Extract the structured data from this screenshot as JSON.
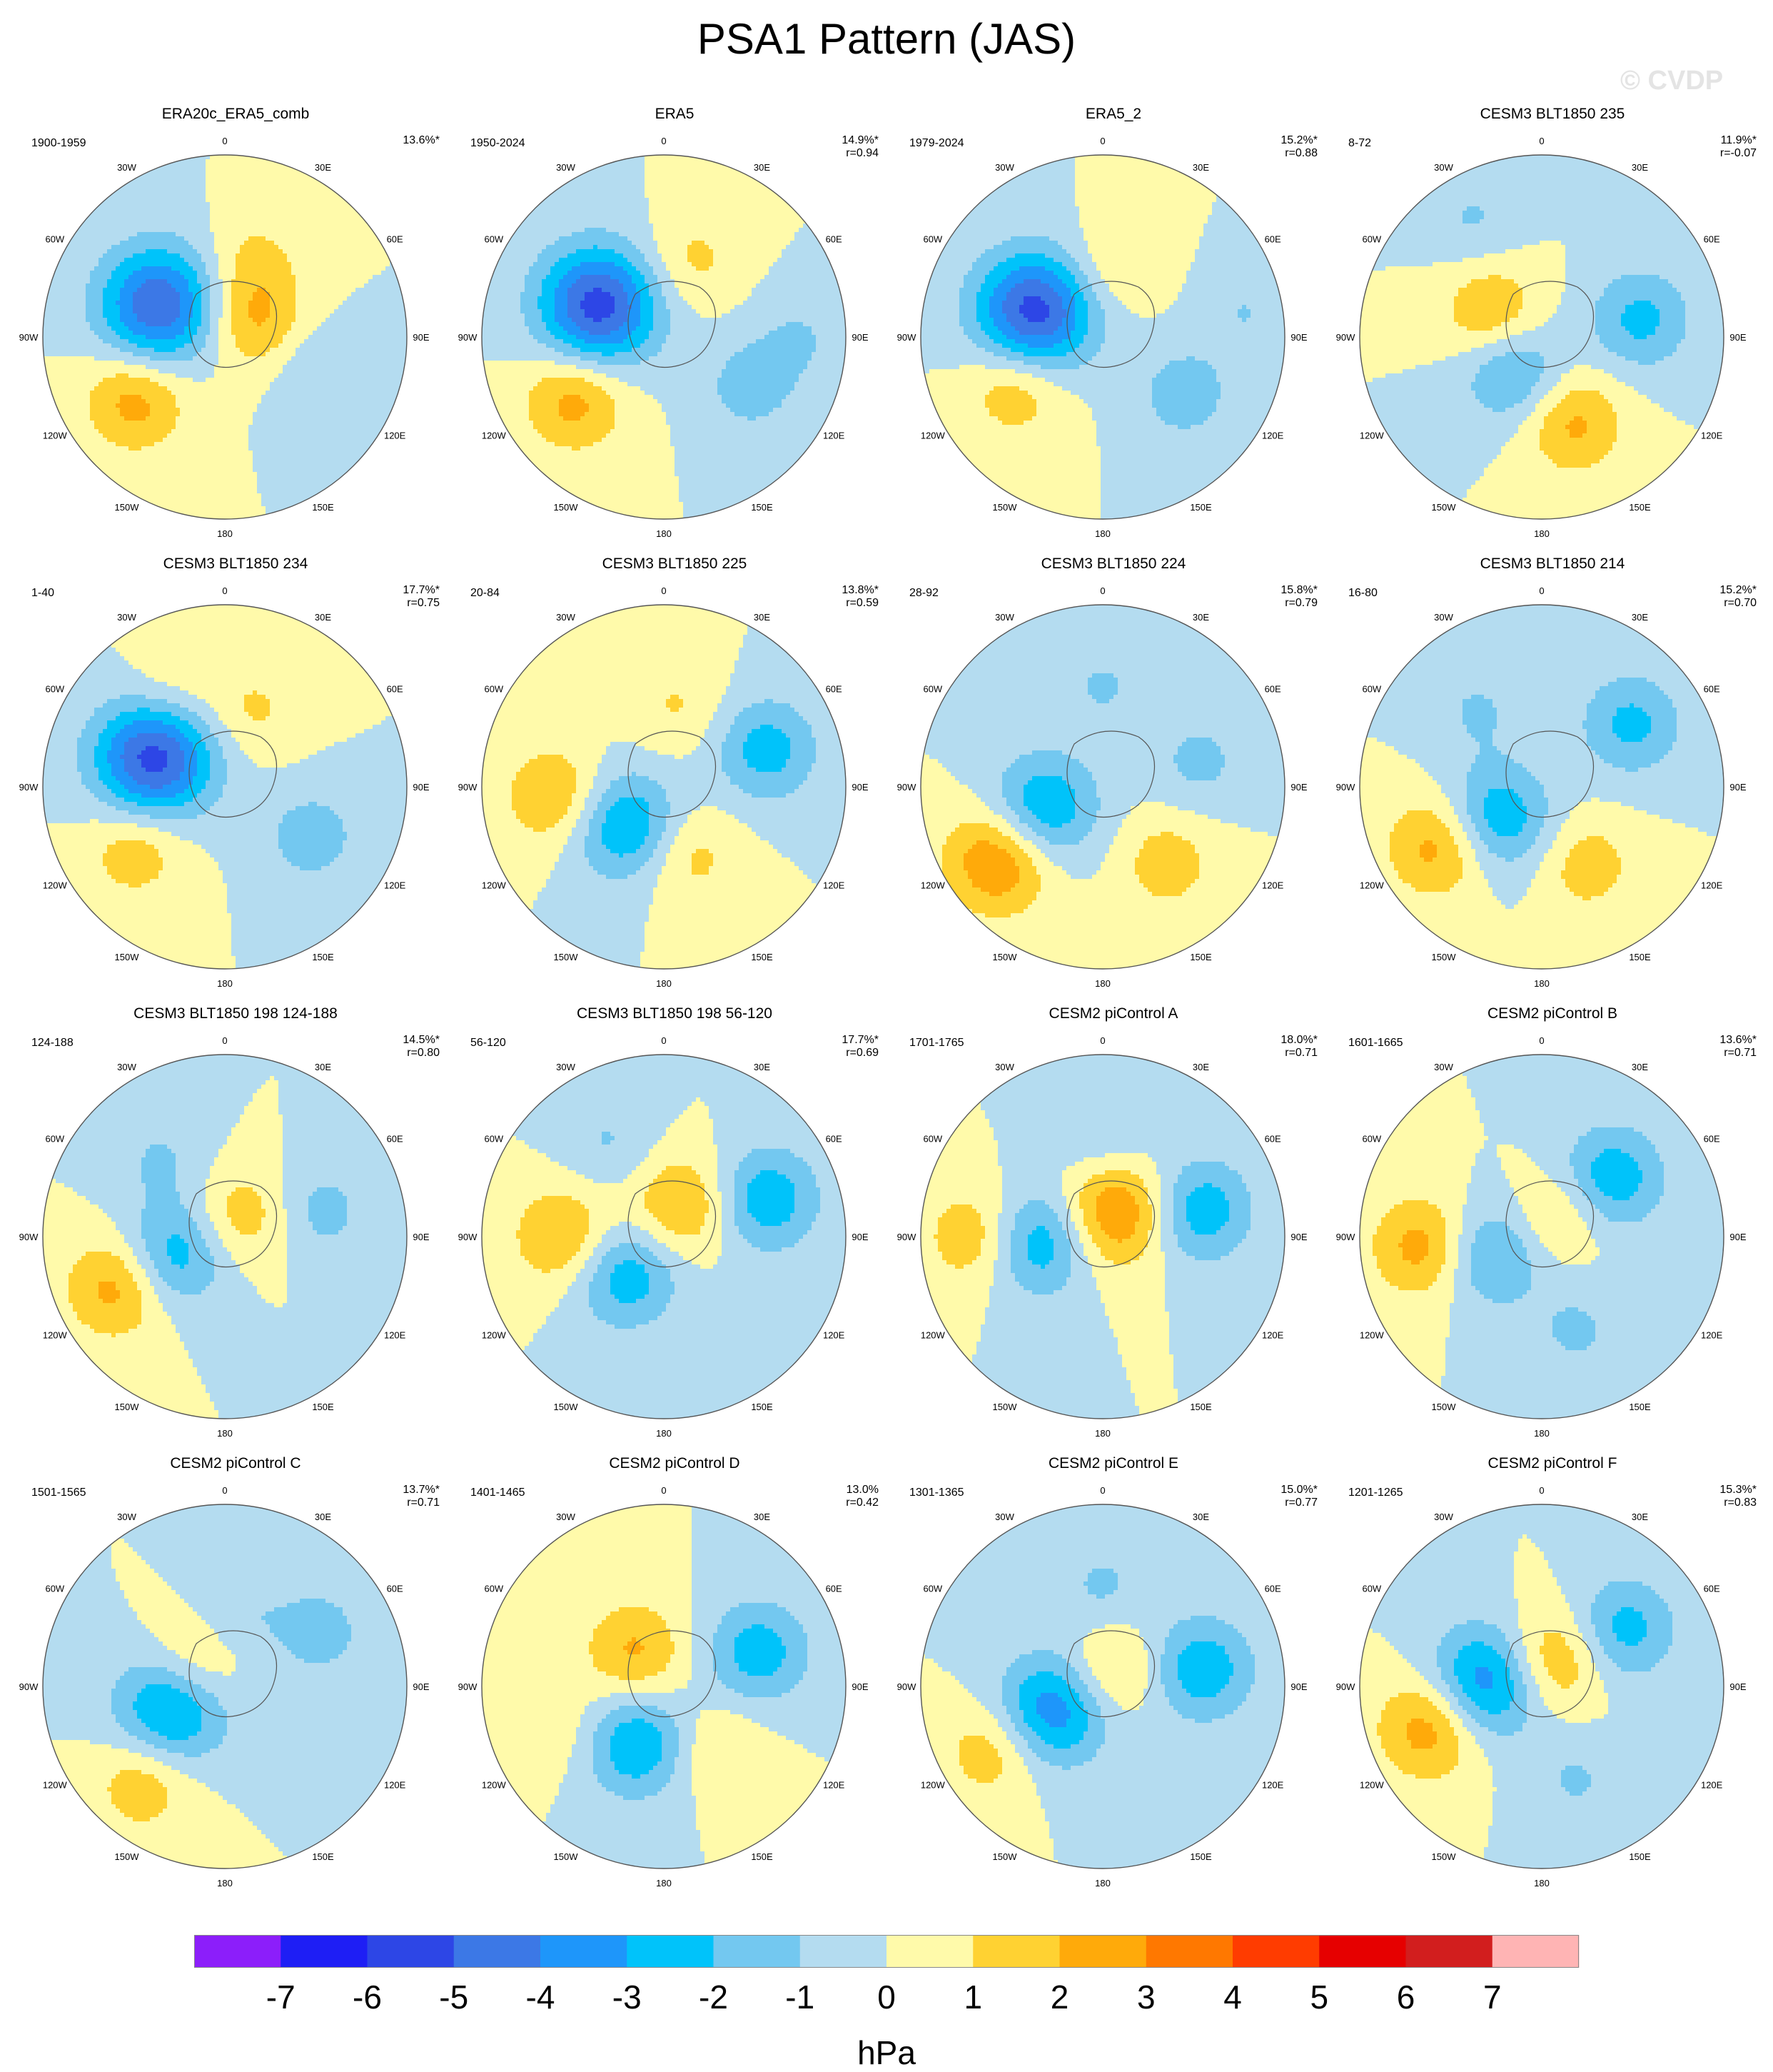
{
  "title": "PSA1 Pattern (JAS)",
  "watermark": "© CVDP",
  "lon_labels": [
    "0",
    "30E",
    "60E",
    "90E",
    "120E",
    "150E",
    "180",
    "150W",
    "120W",
    "90W",
    "60W",
    "30W"
  ],
  "panels": [
    {
      "title": "ERA20c_ERA5_comb",
      "years": "1900-1959",
      "pct": "13.6%*",
      "r": "",
      "centers": [
        [
          295,
          0.4,
          -5.0
        ],
        [
          235,
          0.6,
          2.5
        ],
        [
          60,
          0.18,
          2.2
        ],
        [
          20,
          0.45,
          1.2
        ],
        [
          110,
          0.55,
          -1.1
        ]
      ]
    },
    {
      "title": "ERA5",
      "years": "1950-2024",
      "pct": "14.9%*",
      "r": "r=0.94",
      "centers": [
        [
          295,
          0.4,
          -5.5
        ],
        [
          235,
          0.6,
          2.5
        ],
        [
          20,
          0.45,
          1.3
        ],
        [
          120,
          0.55,
          -1.5
        ],
        [
          90,
          0.75,
          -1.0
        ]
      ]
    },
    {
      "title": "ERA5_2",
      "years": "1979-2024",
      "pct": "15.2%*",
      "r": "r=0.88",
      "centers": [
        [
          290,
          0.4,
          -5.5
        ],
        [
          240,
          0.55,
          2.0
        ],
        [
          10,
          0.4,
          1.2
        ],
        [
          125,
          0.55,
          -1.6
        ],
        [
          80,
          0.8,
          -1.0
        ]
      ]
    },
    {
      "title": "CESM3 BLT1850 235",
      "years": "8-72",
      "pct": "11.9%*",
      "r": "r=-0.07",
      "centers": [
        [
          295,
          0.3,
          2.2
        ],
        [
          220,
          0.25,
          -2.5
        ],
        [
          160,
          0.5,
          2.3
        ],
        [
          80,
          0.55,
          -2.3
        ],
        [
          330,
          0.75,
          -1.1
        ]
      ]
    },
    {
      "title": "CESM3 BLT1850 234",
      "years": "1-40",
      "pct": "17.7%*",
      "r": "r=0.75",
      "centers": [
        [
          292,
          0.42,
          -5.5
        ],
        [
          235,
          0.6,
          1.8
        ],
        [
          120,
          0.55,
          -1.6
        ],
        [
          20,
          0.45,
          1.2
        ],
        [
          330,
          0.6,
          1.1
        ]
      ]
    },
    {
      "title": "CESM3 BLT1850 225",
      "years": "20-84",
      "pct": "13.8%*",
      "r": "r=0.59",
      "centers": [
        [
          225,
          0.3,
          -3.2
        ],
        [
          265,
          0.6,
          2.2
        ],
        [
          70,
          0.6,
          -2.5
        ],
        [
          160,
          0.4,
          1.5
        ],
        [
          10,
          0.45,
          1.1
        ]
      ]
    },
    {
      "title": "CESM3 BLT1850 224",
      "years": "28-92",
      "pct": "15.8%*",
      "r": "r=0.79",
      "centers": [
        [
          250,
          0.35,
          -3.2
        ],
        [
          235,
          0.7,
          3.2
        ],
        [
          140,
          0.55,
          1.6
        ],
        [
          75,
          0.55,
          -1.3
        ],
        [
          0,
          0.55,
          -1.1
        ]
      ]
    },
    {
      "title": "CESM3 BLT1850 214",
      "years": "16-80",
      "pct": "15.2%*",
      "r": "r=0.70",
      "centers": [
        [
          235,
          0.3,
          -3.0
        ],
        [
          240,
          0.65,
          2.6
        ],
        [
          55,
          0.6,
          -2.3
        ],
        [
          150,
          0.5,
          1.6
        ],
        [
          320,
          0.55,
          -1.1
        ]
      ]
    },
    {
      "title": "CESM3 BLT1850 198 124-188",
      "years": "124-188",
      "pct": "14.5%*",
      "r": "r=0.80",
      "centers": [
        [
          250,
          0.3,
          -2.8
        ],
        [
          245,
          0.65,
          2.6
        ],
        [
          40,
          0.15,
          1.7
        ],
        [
          75,
          0.55,
          -1.4
        ],
        [
          320,
          0.55,
          -1.1
        ]
      ]
    },
    {
      "title": "CESM3 BLT1850 198 56-120",
      "years": "56-120",
      "pct": "17.7%*",
      "r": "r=0.69",
      "centers": [
        [
          225,
          0.3,
          -2.8
        ],
        [
          270,
          0.55,
          2.3
        ],
        [
          30,
          0.2,
          2.3
        ],
        [
          70,
          0.6,
          -2.8
        ],
        [
          330,
          0.6,
          -1.1
        ]
      ]
    },
    {
      "title": "CESM2 piControl A",
      "years": "1701-1765",
      "pct": "18.0%*",
      "r": "r=0.71",
      "centers": [
        [
          265,
          0.35,
          -3.0
        ],
        [
          30,
          0.15,
          3.3
        ],
        [
          75,
          0.55,
          -2.8
        ],
        [
          270,
          0.7,
          2.0
        ],
        [
          0,
          0.55,
          -1.1
        ]
      ]
    },
    {
      "title": "CESM2 piControl B",
      "years": "1601-1665",
      "pct": "13.6%*",
      "r": "r=0.71",
      "centers": [
        [
          250,
          0.3,
          -2.5
        ],
        [
          265,
          0.65,
          2.6
        ],
        [
          50,
          0.5,
          -2.8
        ],
        [
          40,
          0.15,
          1.5
        ],
        [
          160,
          0.55,
          -1.2
        ]
      ]
    },
    {
      "title": "CESM2 piControl C",
      "years": "1501-1565",
      "pct": "13.7%*",
      "r": "r=0.71",
      "centers": [
        [
          250,
          0.3,
          -4.0
        ],
        [
          300,
          0.2,
          2.2
        ],
        [
          220,
          0.7,
          1.8
        ],
        [
          60,
          0.6,
          -1.5
        ],
        [
          10,
          0.4,
          -1.0
        ]
      ]
    },
    {
      "title": "CESM2 piControl D",
      "years": "1401-1465",
      "pct": "13.0%",
      "r": "r=0.42",
      "centers": [
        [
          205,
          0.35,
          -3.0
        ],
        [
          320,
          0.25,
          2.2
        ],
        [
          70,
          0.55,
          -2.6
        ],
        [
          140,
          0.45,
          1.2
        ],
        [
          250,
          0.65,
          1.0
        ]
      ]
    },
    {
      "title": "CESM2 piControl E",
      "years": "1301-1365",
      "pct": "15.0%*",
      "r": "r=0.77",
      "centers": [
        [
          245,
          0.3,
          -3.8
        ],
        [
          30,
          0.1,
          1.8
        ],
        [
          80,
          0.55,
          -2.8
        ],
        [
          240,
          0.7,
          1.8
        ],
        [
          0,
          0.55,
          -1.2
        ]
      ]
    },
    {
      "title": "CESM2 piControl F",
      "years": "1201-1265",
      "pct": "15.3%*",
      "r": "r=0.83",
      "centers": [
        [
          275,
          0.3,
          -4.0
        ],
        [
          20,
          0.15,
          2.5
        ],
        [
          55,
          0.55,
          -2.5
        ],
        [
          250,
          0.65,
          2.8
        ],
        [
          160,
          0.55,
          -1.1
        ]
      ]
    }
  ],
  "colorbar": {
    "units": "hPa",
    "labels": [
      "-7",
      "-6",
      "-5",
      "-4",
      "-3",
      "-2",
      "-1",
      "0",
      "1",
      "2",
      "3",
      "4",
      "5",
      "6",
      "7"
    ],
    "colors": [
      "#8c1efa",
      "#1e1ef5",
      "#2d46e6",
      "#3c78e6",
      "#1e96fa",
      "#00c3fa",
      "#73c8f0",
      "#b4dcf0",
      "#fffaaa",
      "#ffd232",
      "#ffaa0a",
      "#ff7800",
      "#ff3c00",
      "#e60000",
      "#d21e1e",
      "#ffb4b4"
    ]
  }
}
